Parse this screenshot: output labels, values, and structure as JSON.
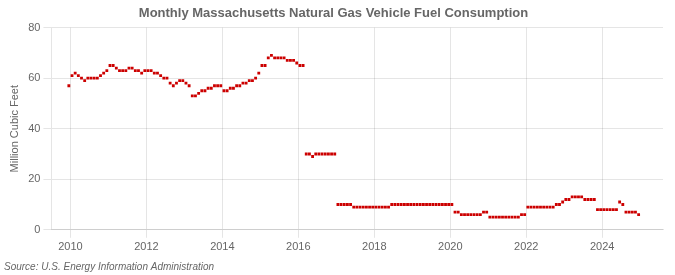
{
  "chart_data": {
    "type": "scatter",
    "title": "Monthly Massachusetts Natural Gas Vehicle Fuel Consumption",
    "y_label": "Million Cubic Feet",
    "annotations": [
      "Source: U.S. Energy Information Administration"
    ],
    "color": "#cc0000",
    "marker": "square",
    "grid": true,
    "xlim": [
      2009.5,
      2025.6
    ],
    "xticks": [
      2010,
      2012,
      2014,
      2016,
      2018,
      2020,
      2022,
      2024
    ],
    "ylim": [
      0,
      80
    ],
    "yticks": [
      0,
      20,
      40,
      60,
      80
    ],
    "x": [
      2009.9583,
      2010.0417,
      2010.125,
      2010.2083,
      2010.2917,
      2010.375,
      2010.4583,
      2010.5417,
      2010.625,
      2010.7083,
      2010.7917,
      2010.875,
      2010.9583,
      2011.0417,
      2011.125,
      2011.2083,
      2011.2917,
      2011.375,
      2011.4583,
      2011.5417,
      2011.625,
      2011.7083,
      2011.7917,
      2011.875,
      2011.9583,
      2012.0417,
      2012.125,
      2012.2083,
      2012.2917,
      2012.375,
      2012.4583,
      2012.5417,
      2012.625,
      2012.7083,
      2012.7917,
      2012.875,
      2012.9583,
      2013.0417,
      2013.125,
      2013.2083,
      2013.2917,
      2013.375,
      2013.4583,
      2013.5417,
      2013.625,
      2013.7083,
      2013.7917,
      2013.875,
      2013.9583,
      2014.0417,
      2014.125,
      2014.2083,
      2014.2917,
      2014.375,
      2014.4583,
      2014.5417,
      2014.625,
      2014.7083,
      2014.7917,
      2014.875,
      2014.9583,
      2015.0417,
      2015.125,
      2015.2083,
      2015.2917,
      2015.375,
      2015.4583,
      2015.5417,
      2015.625,
      2015.7083,
      2015.7917,
      2015.875,
      2015.9583,
      2016.0417,
      2016.125,
      2016.2083,
      2016.2917,
      2016.375,
      2016.4583,
      2016.5417,
      2016.625,
      2016.7083,
      2016.7917,
      2016.875,
      2016.9583,
      2017.0417,
      2017.125,
      2017.2083,
      2017.2917,
      2017.375,
      2017.4583,
      2017.5417,
      2017.625,
      2017.7083,
      2017.7917,
      2017.875,
      2017.9583,
      2018.0417,
      2018.125,
      2018.2083,
      2018.2917,
      2018.375,
      2018.4583,
      2018.5417,
      2018.625,
      2018.7083,
      2018.7917,
      2018.875,
      2018.9583,
      2019.0417,
      2019.125,
      2019.2083,
      2019.2917,
      2019.375,
      2019.4583,
      2019.5417,
      2019.625,
      2019.7083,
      2019.7917,
      2019.875,
      2019.9583,
      2020.0417,
      2020.125,
      2020.2083,
      2020.2917,
      2020.375,
      2020.4583,
      2020.5417,
      2020.625,
      2020.7083,
      2020.7917,
      2020.875,
      2020.9583,
      2021.0417,
      2021.125,
      2021.2083,
      2021.2917,
      2021.375,
      2021.4583,
      2021.5417,
      2021.625,
      2021.7083,
      2021.7917,
      2021.875,
      2021.9583,
      2022.0417,
      2022.125,
      2022.2083,
      2022.2917,
      2022.375,
      2022.4583,
      2022.5417,
      2022.625,
      2022.7083,
      2022.7917,
      2022.875,
      2022.9583,
      2023.0417,
      2023.125,
      2023.2083,
      2023.2917,
      2023.375,
      2023.4583,
      2023.5417,
      2023.625,
      2023.7083,
      2023.7917,
      2023.875,
      2023.9583,
      2024.0417,
      2024.125,
      2024.2083,
      2024.2917,
      2024.375,
      2024.4583,
      2024.5417,
      2024.625,
      2024.7083,
      2024.7917,
      2024.875,
      2024.9583
    ],
    "values": [
      57,
      61,
      62,
      61,
      60,
      59,
      60,
      60,
      60,
      60,
      61,
      62,
      63,
      65,
      65,
      64,
      63,
      63,
      63,
      64,
      64,
      63,
      63,
      62,
      63,
      63,
      63,
      62,
      62,
      61,
      60,
      60,
      58,
      57,
      58,
      59,
      59,
      58,
      57,
      53,
      53,
      54,
      55,
      55,
      56,
      56,
      57,
      57,
      57,
      55,
      55,
      56,
      56,
      57,
      57,
      58,
      58,
      59,
      59,
      60,
      62,
      65,
      65,
      68,
      69,
      68,
      68,
      68,
      68,
      67,
      67,
      67,
      66,
      65,
      65,
      30,
      30,
      29,
      30,
      30,
      30,
      30,
      30,
      30,
      30,
      10,
      10,
      10,
      10,
      10,
      9,
      9,
      9,
      9,
      9,
      9,
      9,
      9,
      9,
      9,
      9,
      9,
      10,
      10,
      10,
      10,
      10,
      10,
      10,
      10,
      10,
      10,
      10,
      10,
      10,
      10,
      10,
      10,
      10,
      10,
      10,
      10,
      7,
      7,
      6,
      6,
      6,
      6,
      6,
      6,
      6,
      7,
      7,
      5,
      5,
      5,
      5,
      5,
      5,
      5,
      5,
      5,
      5,
      6,
      6,
      9,
      9,
      9,
      9,
      9,
      9,
      9,
      9,
      9,
      10,
      10,
      11,
      12,
      12,
      13,
      13,
      13,
      13,
      12,
      12,
      12,
      12,
      8,
      8,
      8,
      8,
      8,
      8,
      8,
      11,
      10,
      7,
      7,
      7,
      7,
      6
    ]
  }
}
